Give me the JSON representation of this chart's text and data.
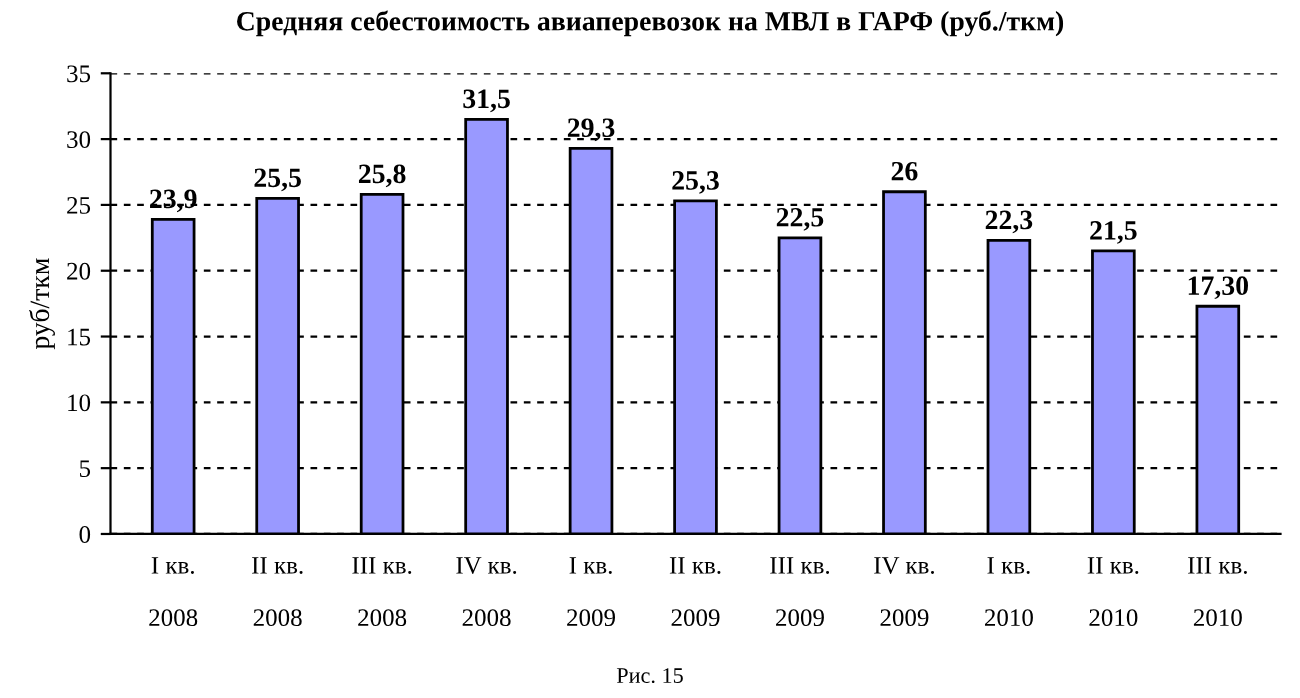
{
  "chart_data": {
    "type": "bar",
    "title": "Средняя себестоимость авиаперевозок на МВЛ в ГАРФ (руб./ткм)",
    "ylabel": "руб/ткм",
    "categories": [
      "I кв.\n\n2008",
      "II кв.\n\n2008",
      "III кв.\n\n2008",
      "IV кв.\n\n2008",
      "I кв.\n\n2009",
      "II кв.\n\n2009",
      "III кв.\n\n2009",
      "IV кв.\n\n2009",
      "I кв.\n\n2010",
      "II кв.\n\n2010",
      "III кв.\n\n2010"
    ],
    "values": [
      23.9,
      25.5,
      25.8,
      31.5,
      29.3,
      25.3,
      22.5,
      26,
      22.3,
      21.5,
      17.3
    ],
    "value_labels": [
      "23,9",
      "25,5",
      "25,8",
      "31,5",
      "29,3",
      "25,3",
      "22,5",
      "26",
      "22,3",
      "21,5",
      "17,30"
    ],
    "color": "#9999ff",
    "ylim": [
      0,
      35
    ],
    "yticks": [
      0,
      5,
      10,
      15,
      20,
      25,
      30,
      35
    ],
    "grid": "y",
    "legend": false,
    "annotations": [
      "Рис. 15"
    ]
  }
}
